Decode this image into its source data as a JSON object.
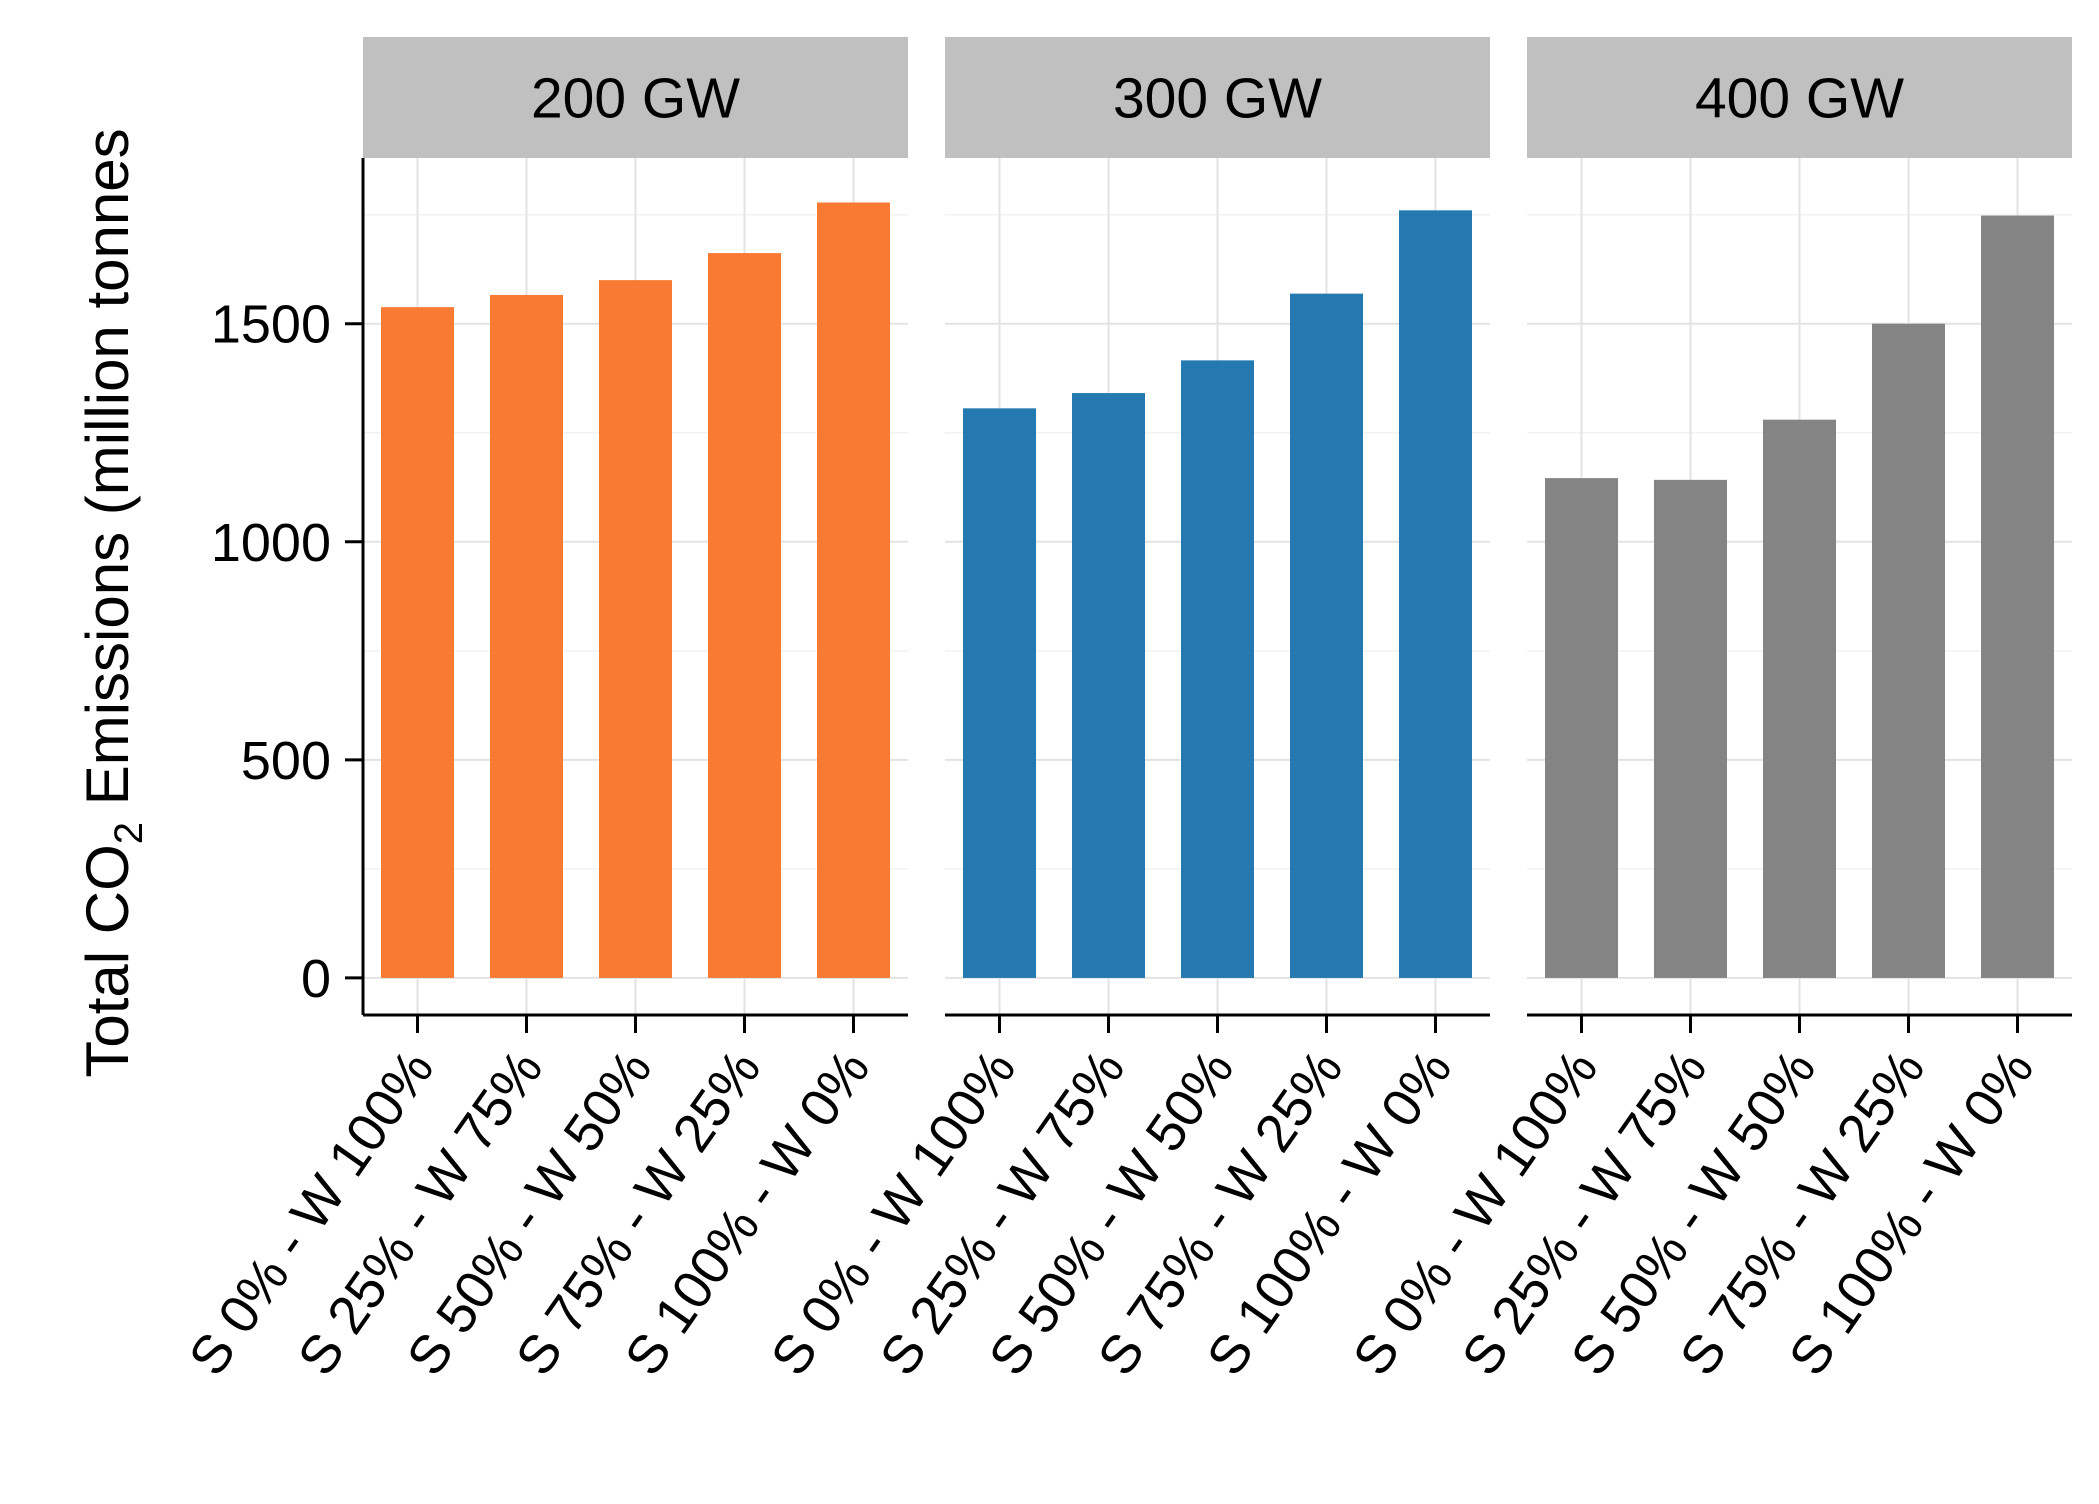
{
  "chart_data": {
    "type": "bar",
    "ylabel": {
      "pre": "Total CO",
      "sub": "2",
      "post": " Emissions (million tonnes"
    },
    "ylim": [
      -85,
      1880
    ],
    "y_ticks": [
      0,
      500,
      1000,
      1500
    ],
    "y_tick_labels": [
      "0",
      "500",
      "1000",
      "1500"
    ],
    "grid": true,
    "categories": [
      "S 0% - W 100%",
      "S 25% - W 75%",
      "S 50% - W 50%",
      "S 75% - W 25%",
      "S 100% - W 0%"
    ],
    "panels": [
      {
        "label": "200 GW",
        "color": "#F87A33",
        "values": [
          1538,
          1566,
          1600,
          1662,
          1778
        ]
      },
      {
        "label": "300 GW",
        "color": "#2479B0",
        "values": [
          1306,
          1341,
          1416,
          1569,
          1760
        ]
      },
      {
        "label": "400 GW",
        "color": "#848484",
        "values": [
          1146,
          1142,
          1280,
          1500,
          1748
        ]
      }
    ]
  }
}
